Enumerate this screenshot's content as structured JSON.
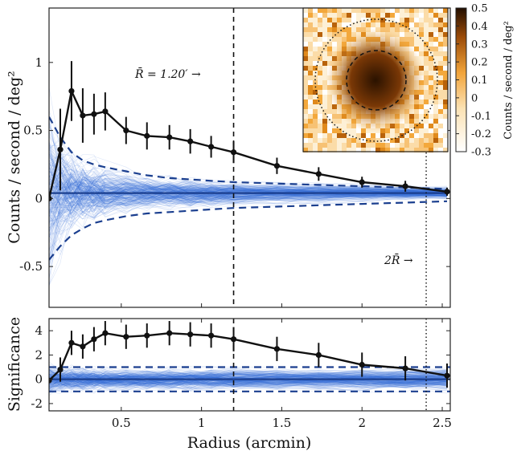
{
  "chart_data": [
    {
      "type": "line",
      "panel": "profile",
      "ylabel": "Counts / second / deg²",
      "xlim": [
        0.05,
        2.55
      ],
      "ylim": [
        -0.8,
        1.4
      ],
      "yticks": [
        -0.5,
        0,
        0.5,
        1
      ],
      "ytick_labels": [
        "-0.5",
        "0",
        "0.5",
        "1"
      ],
      "annotations": {
        "mean_radius": "R̄ = 1.20′ →",
        "double_radius": "2R̄ →"
      },
      "reference_lines": {
        "mean_radius_x": 1.2,
        "double_radius_x": 2.4
      },
      "series": [
        {
          "x": [
            0.05,
            0.12,
            0.19,
            0.26,
            0.33,
            0.4,
            0.53,
            0.66,
            0.8,
            0.93,
            1.06,
            1.2,
            1.47,
            1.73,
            2.0,
            2.27,
            2.53
          ],
          "values": [
            0.0,
            0.36,
            0.79,
            0.61,
            0.62,
            0.64,
            0.5,
            0.46,
            0.45,
            0.42,
            0.38,
            0.34,
            0.24,
            0.18,
            0.12,
            0.09,
            0.05
          ],
          "err": [
            0,
            0.3,
            0.22,
            0.2,
            0.15,
            0.14,
            0.1,
            0.1,
            0.09,
            0.09,
            0.08,
            0.08,
            0.06,
            0.05,
            0.04,
            0.04,
            0.03
          ]
        }
      ],
      "null_band": {
        "mean": 0.04,
        "upper": [
          0.6,
          0.45,
          0.34,
          0.28,
          0.25,
          0.23,
          0.2,
          0.17,
          0.15,
          0.14,
          0.13,
          0.12,
          0.11,
          0.1,
          0.09,
          0.08,
          0.07
        ],
        "lower": [
          -0.45,
          -0.35,
          -0.27,
          -0.22,
          -0.18,
          -0.16,
          -0.13,
          -0.11,
          -0.1,
          -0.09,
          -0.08,
          -0.07,
          -0.06,
          -0.05,
          -0.04,
          -0.03,
          -0.02
        ]
      }
    },
    {
      "type": "line",
      "panel": "significance",
      "xlabel": "Radius (arcmin)",
      "ylabel": "Significance",
      "xlim": [
        0.05,
        2.55
      ],
      "ylim": [
        -2.6,
        5.0
      ],
      "xticks": [
        0.5,
        1,
        1.5,
        2,
        2.5
      ],
      "xtick_labels": [
        "0.5",
        "1",
        "1.5",
        "2",
        "2.5"
      ],
      "yticks": [
        -2,
        0,
        2,
        4
      ],
      "ytick_labels": [
        "-2",
        "0",
        "2",
        "4"
      ],
      "series": [
        {
          "x": [
            0.05,
            0.12,
            0.19,
            0.26,
            0.33,
            0.4,
            0.53,
            0.66,
            0.8,
            0.93,
            1.06,
            1.2,
            1.47,
            1.73,
            2.0,
            2.27,
            2.53
          ],
          "values": [
            -0.1,
            0.8,
            3.0,
            2.7,
            3.3,
            3.8,
            3.5,
            3.6,
            3.8,
            3.7,
            3.6,
            3.3,
            2.5,
            2.0,
            1.2,
            0.9,
            0.3
          ],
          "err": [
            0,
            1.0,
            1.0,
            1.0,
            1.0,
            1.0,
            1.0,
            1.0,
            1.0,
            1.0,
            1.0,
            1.0,
            1.0,
            1.0,
            1.0,
            1.0,
            1.0
          ]
        }
      ],
      "band_levels": {
        "upper": 1,
        "lower": -1,
        "center": 0
      }
    }
  ],
  "inset": {
    "colorbar_label": "Counts / second / deg²",
    "colorbar_ticks": [
      "0.5",
      "0.4",
      "0.3",
      "0.2",
      "0.1",
      "0",
      "-0.1",
      "-0.2",
      "-0.3"
    ],
    "colorbar_range": [
      -0.3,
      0.5
    ],
    "colors": {
      "low": "#ffffff",
      "mid": "#f5a623",
      "high": "#2a1200"
    }
  },
  "colors": {
    "profile": "#111111",
    "bootstrap": "#3a6fd8",
    "band": "#1b3f8f"
  }
}
